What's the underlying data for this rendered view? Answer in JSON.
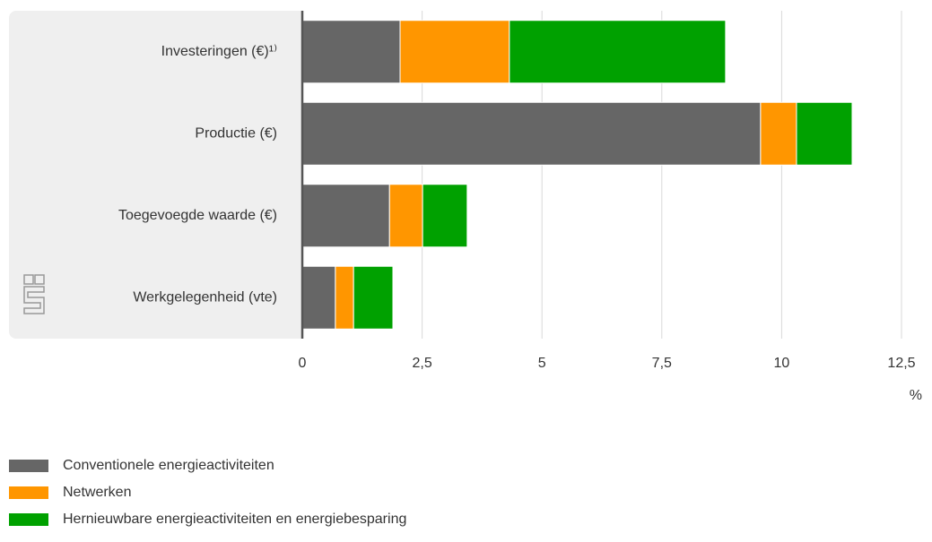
{
  "chart_data": {
    "type": "stacked-barh",
    "categories": [
      "Investeringen (€)¹⁾",
      "Productie (€)",
      "Toegevoegde waarde (€)",
      "Werkgelegenheid (vte)"
    ],
    "series": [
      {
        "name": "Conventionele energieactiviteiten",
        "color": "#666666",
        "values": [
          2.04,
          9.56,
          1.82,
          0.69
        ]
      },
      {
        "name": "Netwerken",
        "color": "#ff9600",
        "values": [
          2.28,
          0.75,
          0.69,
          0.38
        ]
      },
      {
        "name": "Hernieuwbare energieactiviteiten en energiebesparing",
        "color": "#00a100",
        "values": [
          4.51,
          1.16,
          0.93,
          0.82
        ]
      }
    ],
    "xlim": [
      0,
      12.5
    ],
    "xticks": [
      0,
      {
        "value": 2.5,
        "label": "2,5"
      },
      5,
      {
        "value": 7.5,
        "label": "7,5"
      },
      10,
      {
        "value": 12.5,
        "label": "12,5"
      }
    ],
    "xlabel": "%",
    "grid": true
  }
}
